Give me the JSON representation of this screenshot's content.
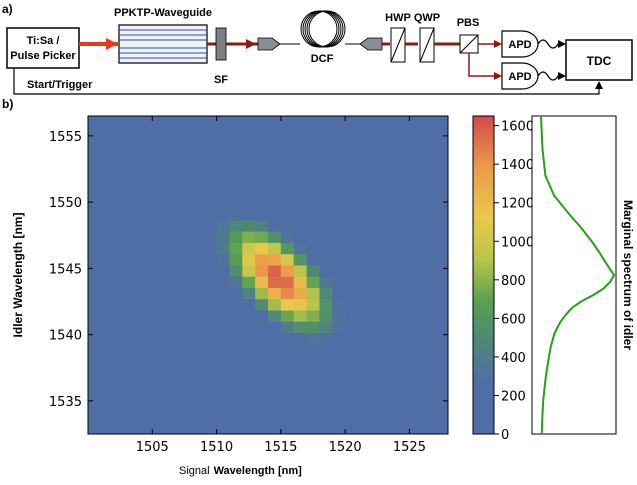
{
  "panel_a": {
    "label": "a)",
    "source_label_line1": "Ti:Sa /",
    "source_label_line2": "Pulse Picker",
    "waveguide_label": "PPKTP-Waveguide",
    "sf_label": "SF",
    "dcf_label": "DCF",
    "hwp_label": "HWP",
    "qwp_label": "QWP",
    "pbs_label": "PBS",
    "apd1_label": "APD",
    "apd2_label": "APD",
    "tdc_label": "TDC",
    "trigger_label": "Start/Trigger",
    "colors": {
      "pump": "#e8391a",
      "signal": "#8e1a0e",
      "box_gray": "#8a8d94"
    }
  },
  "panel_b": {
    "label": "b)",
    "xlabel_part1": "Signal",
    "xlabel_part2": "Wavelength [nm]",
    "ylabel": "Idler Wavelength [nm]",
    "right_label": "Marginal spectrum of idler"
  },
  "chart_data": {
    "type": "heatmap",
    "xlim": [
      1500,
      1528
    ],
    "ylim": [
      1532.5,
      1556.5
    ],
    "x_ticks": [
      1505,
      1510,
      1515,
      1520,
      1525
    ],
    "y_ticks": [
      1535,
      1540,
      1545,
      1550,
      1555
    ],
    "colorbar": {
      "range": [
        0,
        1650
      ],
      "ticks": [
        0,
        200,
        400,
        600,
        800,
        1000,
        1200,
        1400,
        1600
      ],
      "colors": [
        "#4f6ea6",
        "#4e8a73",
        "#5aa050",
        "#b8c64a",
        "#e9c94c",
        "#eb9a4a",
        "#d24a4a"
      ]
    },
    "peak": {
      "signal_nm": 1514.8,
      "idler_nm": 1544.3,
      "counts": 1600
    },
    "grid": false,
    "marginal": {
      "series_color": "#23a214",
      "idler_nm": [
        1556.5,
        1554,
        1552,
        1550.5,
        1549,
        1548,
        1547,
        1546.2,
        1545.5,
        1545,
        1544.5,
        1544,
        1543.5,
        1543,
        1542.5,
        1542,
        1541.5,
        1541,
        1540.5,
        1540,
        1539,
        1538,
        1537,
        1536,
        1535,
        1534,
        1532.5
      ],
      "relative": [
        0.0,
        0.02,
        0.06,
        0.18,
        0.4,
        0.56,
        0.7,
        0.8,
        0.88,
        0.94,
        1.0,
        0.95,
        0.86,
        0.72,
        0.55,
        0.42,
        0.34,
        0.27,
        0.22,
        0.18,
        0.13,
        0.1,
        0.07,
        0.05,
        0.03,
        0.02,
        0.01
      ]
    }
  }
}
